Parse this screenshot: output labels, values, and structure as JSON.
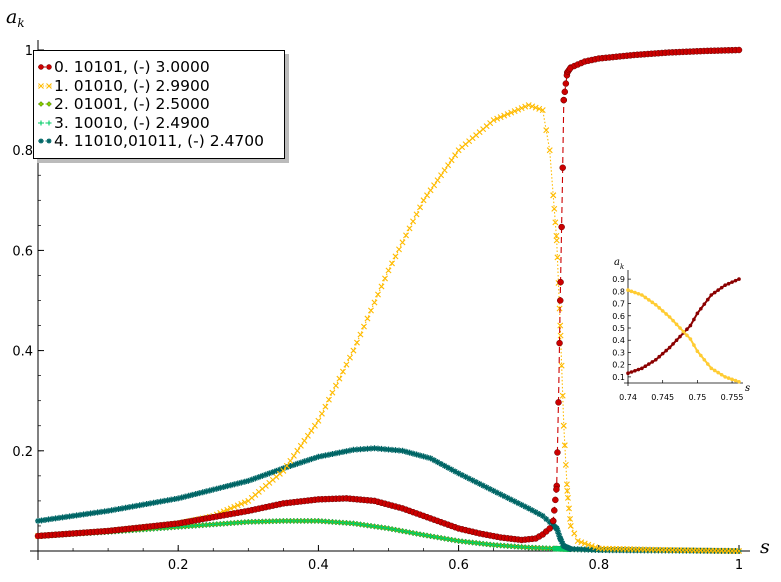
{
  "chart_data": [
    {
      "type": "scatter",
      "xlabel": "s",
      "ylabel": "a_k",
      "xlim": [
        0,
        1
      ],
      "ylim": [
        0,
        1
      ],
      "xticks": [
        "0.2",
        "0.4",
        "0.6",
        "0.8",
        "1"
      ],
      "yticks": [
        "0.2",
        "0.4",
        "0.6",
        "0.8",
        "1"
      ],
      "grid": false,
      "legend_position": "top-left",
      "series": [
        {
          "name": "0. 10101, (-) 3.0000",
          "color": "#cc0000",
          "marker": "circle",
          "line": "dashed",
          "x": [
            0,
            0.1,
            0.2,
            0.3,
            0.35,
            0.4,
            0.44,
            0.48,
            0.52,
            0.56,
            0.6,
            0.63,
            0.66,
            0.69,
            0.71,
            0.72,
            0.73,
            0.735,
            0.74,
            0.743,
            0.745,
            0.748,
            0.75,
            0.755,
            0.76,
            0.78,
            0.8,
            0.85,
            0.9,
            0.95,
            1.0
          ],
          "y": [
            0.03,
            0.04,
            0.055,
            0.08,
            0.095,
            0.103,
            0.105,
            0.1,
            0.085,
            0.065,
            0.045,
            0.035,
            0.027,
            0.022,
            0.025,
            0.033,
            0.045,
            0.06,
            0.13,
            0.33,
            0.5,
            0.72,
            0.9,
            0.955,
            0.965,
            0.977,
            0.983,
            0.99,
            0.995,
            0.998,
            1.0
          ]
        },
        {
          "name": "1. 01010, (-) 2.9900",
          "color": "#ffbb00",
          "marker": "x",
          "line": "dotted",
          "x": [
            0,
            0.1,
            0.2,
            0.25,
            0.3,
            0.35,
            0.4,
            0.45,
            0.5,
            0.55,
            0.6,
            0.65,
            0.7,
            0.72,
            0.73,
            0.74,
            0.745,
            0.75,
            0.755,
            0.76,
            0.77,
            0.8,
            0.9,
            1.0
          ],
          "y": [
            0.03,
            0.04,
            0.055,
            0.07,
            0.1,
            0.16,
            0.26,
            0.4,
            0.56,
            0.7,
            0.8,
            0.86,
            0.89,
            0.88,
            0.8,
            0.62,
            0.45,
            0.25,
            0.12,
            0.05,
            0.02,
            0.005,
            0.002,
            0.0
          ]
        },
        {
          "name": "2. 01001, (-) 2.5000",
          "color": "#88cc00",
          "marker": "diamond",
          "line": "dotted",
          "x": [
            0,
            0.1,
            0.2,
            0.3,
            0.35,
            0.4,
            0.45,
            0.5,
            0.55,
            0.6,
            0.65,
            0.7,
            0.75,
            0.8,
            0.9,
            1.0
          ],
          "y": [
            0.03,
            0.038,
            0.048,
            0.058,
            0.06,
            0.06,
            0.055,
            0.045,
            0.032,
            0.02,
            0.012,
            0.007,
            0.004,
            0.002,
            0.001,
            0.0
          ]
        },
        {
          "name": "3. 10010, (-) 2.4900",
          "color": "#00cc66",
          "marker": "plus",
          "line": "dotted",
          "x": [
            0,
            0.1,
            0.2,
            0.3,
            0.35,
            0.4,
            0.45,
            0.5,
            0.55,
            0.6,
            0.65,
            0.7,
            0.75,
            0.8,
            0.9,
            1.0
          ],
          "y": [
            0.03,
            0.038,
            0.048,
            0.058,
            0.06,
            0.06,
            0.055,
            0.045,
            0.032,
            0.02,
            0.012,
            0.007,
            0.004,
            0.002,
            0.001,
            0.0
          ]
        },
        {
          "name": "4. 11010,01011, (-) 2.4700",
          "color": "#006666",
          "marker": "star",
          "line": "dotted",
          "x": [
            0,
            0.1,
            0.2,
            0.3,
            0.35,
            0.4,
            0.45,
            0.48,
            0.52,
            0.56,
            0.6,
            0.65,
            0.7,
            0.72,
            0.74,
            0.745,
            0.75,
            0.76,
            0.8,
            0.9,
            1.0
          ],
          "y": [
            0.06,
            0.08,
            0.105,
            0.14,
            0.165,
            0.188,
            0.202,
            0.205,
            0.2,
            0.185,
            0.155,
            0.12,
            0.085,
            0.07,
            0.045,
            0.025,
            0.01,
            0.004,
            0.002,
            0.001,
            0.0
          ]
        }
      ]
    },
    {
      "type": "line",
      "xlabel": "s",
      "ylabel": "a_k",
      "xlim": [
        0.74,
        0.756
      ],
      "ylim": [
        0.05,
        0.95
      ],
      "xticks": [
        "0.74",
        "0.745",
        "0.75",
        "0.755"
      ],
      "yticks": [
        "0.1",
        "0.2",
        "0.3",
        "0.4",
        "0.5",
        "0.6",
        "0.7",
        "0.8",
        "0.9"
      ],
      "series": [
        {
          "color": "#8b0000",
          "marker": "circle",
          "x": [
            0.74,
            0.742,
            0.744,
            0.746,
            0.748,
            0.749,
            0.75,
            0.752,
            0.754,
            0.756
          ],
          "y": [
            0.13,
            0.17,
            0.24,
            0.34,
            0.46,
            0.52,
            0.62,
            0.77,
            0.85,
            0.9
          ]
        },
        {
          "color": "#ffcc33",
          "marker": "circle",
          "x": [
            0.74,
            0.742,
            0.744,
            0.746,
            0.748,
            0.749,
            0.75,
            0.752,
            0.754,
            0.756
          ],
          "y": [
            0.81,
            0.77,
            0.69,
            0.59,
            0.47,
            0.41,
            0.31,
            0.17,
            0.1,
            0.06
          ]
        }
      ]
    }
  ]
}
